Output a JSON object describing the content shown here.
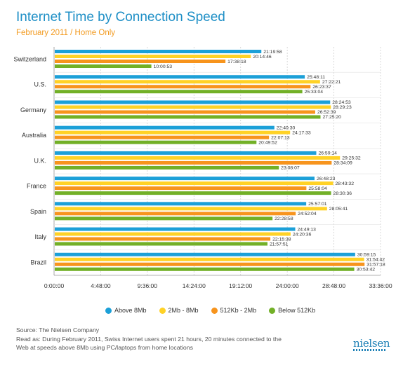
{
  "header": {
    "title": "Internet Time by Connection Speed",
    "subtitle": "February 2011 / Home Only"
  },
  "colors": {
    "title": "#1e8fc6",
    "subtitle": "#f29a1f",
    "above_8mb": "#1ca0d8",
    "2mb_8mb": "#ffd226",
    "512kb_2mb": "#f7941d",
    "below_512kb": "#72b027"
  },
  "chart_data": {
    "type": "bar",
    "orientation": "horizontal",
    "title": "Internet Time by Connection Speed",
    "subtitle": "February 2011 / Home Only",
    "value_unit": "hours",
    "categories": [
      "Switzerland",
      "U.S.",
      "Germany",
      "Australia",
      "U.K.",
      "France",
      "Spain",
      "Italy",
      "Brazil"
    ],
    "series": [
      {
        "name": "Above 8Mb",
        "color": "#1ca0d8",
        "labels": [
          "21:19:58",
          "25:48:11",
          "28:24:53",
          "22:40:30",
          "26:59:14",
          "26:48:23",
          "25:57:01",
          "24:49:13",
          "30:59:15"
        ]
      },
      {
        "name": "2Mb - 8Mb",
        "color": "#ffd226",
        "labels": [
          "20:14:46",
          "27:22:21",
          "28:29:23",
          "24:17:33",
          "29:25:32",
          "28:43:32",
          "28:05:41",
          "24:20:36",
          "31:54:42"
        ]
      },
      {
        "name": "512Kb - 2Mb",
        "color": "#f7941d",
        "labels": [
          "17:38:18",
          "26:23:37",
          "26:52:39",
          "22:07:13",
          "28:34:09",
          "25:58:04",
          "24:52:04",
          "22:15:38",
          "31:57:18"
        ]
      },
      {
        "name": "Below 512Kb",
        "color": "#72b027",
        "labels": [
          "10:00:53",
          "25:33:04",
          "27:25:20",
          "20:49:52",
          "23:08:07",
          "28:30:36",
          "22:28:58",
          "21:57:51",
          "30:53:42"
        ]
      }
    ],
    "x_ticks": [
      "0:00:00",
      "4:48:00",
      "9:36:00",
      "14:24:00",
      "19:12:00",
      "24:00:00",
      "28:48:00",
      "33:36:00"
    ],
    "xlim": [
      "0:00:00",
      "33:36:00"
    ],
    "grid": true,
    "legend_position": "bottom"
  },
  "footer": {
    "source": "Source: The Nielsen Company",
    "note_line1": "Read as: During February 2011, Swiss Internet users spent 21 hours, 20 minutes connected to the",
    "note_line2": "Web at speeds above 8Mb using PC/laptops from home locations",
    "logo": "nielsen"
  }
}
